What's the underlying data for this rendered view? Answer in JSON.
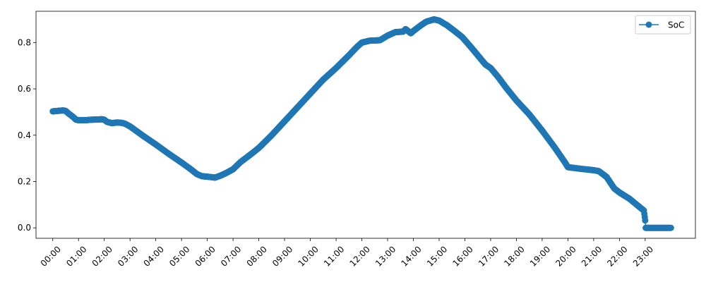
{
  "chart_data": {
    "type": "line",
    "x_ticks": [
      "00:00",
      "01:00",
      "02:00",
      "03:00",
      "04:00",
      "05:00",
      "06:00",
      "07:00",
      "08:00",
      "09:00",
      "10:00",
      "11:00",
      "12:00",
      "13:00",
      "14:00",
      "15:00",
      "16:00",
      "17:00",
      "18:00",
      "19:00",
      "20:00",
      "21:00",
      "22:00",
      "23:00"
    ],
    "y_ticks": [
      "0.0",
      "0.2",
      "0.4",
      "0.6",
      "0.8"
    ],
    "xlim_hours": [
      -0.65,
      24.95
    ],
    "ylim": [
      -0.045,
      0.935
    ],
    "legend": {
      "entries": [
        "SoC"
      ],
      "placement": "top-right"
    },
    "grid": false,
    "colors": {
      "series": "#1f77b4"
    },
    "series": [
      {
        "name": "SoC",
        "points": [
          [
            0.0,
            0.503
          ],
          [
            0.2,
            0.505
          ],
          [
            0.4,
            0.507
          ],
          [
            0.5,
            0.505
          ],
          [
            0.6,
            0.495
          ],
          [
            0.8,
            0.478
          ],
          [
            0.9,
            0.467
          ],
          [
            1.0,
            0.465
          ],
          [
            1.3,
            0.465
          ],
          [
            1.5,
            0.467
          ],
          [
            1.8,
            0.468
          ],
          [
            1.9,
            0.469
          ],
          [
            2.0,
            0.467
          ],
          [
            2.1,
            0.458
          ],
          [
            2.3,
            0.452
          ],
          [
            2.5,
            0.455
          ],
          [
            2.7,
            0.453
          ],
          [
            2.8,
            0.45
          ],
          [
            3.0,
            0.438
          ],
          [
            3.5,
            0.398
          ],
          [
            4.0,
            0.36
          ],
          [
            4.5,
            0.32
          ],
          [
            5.0,
            0.282
          ],
          [
            5.3,
            0.258
          ],
          [
            5.6,
            0.232
          ],
          [
            5.8,
            0.223
          ],
          [
            6.0,
            0.221
          ],
          [
            6.3,
            0.217
          ],
          [
            6.5,
            0.225
          ],
          [
            6.7,
            0.235
          ],
          [
            7.0,
            0.253
          ],
          [
            7.3,
            0.285
          ],
          [
            7.6,
            0.31
          ],
          [
            8.0,
            0.345
          ],
          [
            8.5,
            0.4
          ],
          [
            9.0,
            0.46
          ],
          [
            9.5,
            0.52
          ],
          [
            10.0,
            0.58
          ],
          [
            10.5,
            0.64
          ],
          [
            11.0,
            0.69
          ],
          [
            11.5,
            0.745
          ],
          [
            11.8,
            0.78
          ],
          [
            12.0,
            0.8
          ],
          [
            12.3,
            0.808
          ],
          [
            12.7,
            0.81
          ],
          [
            13.0,
            0.83
          ],
          [
            13.3,
            0.845
          ],
          [
            13.6,
            0.847
          ],
          [
            13.7,
            0.858
          ],
          [
            13.9,
            0.84
          ],
          [
            14.0,
            0.85
          ],
          [
            14.3,
            0.875
          ],
          [
            14.5,
            0.89
          ],
          [
            14.8,
            0.9
          ],
          [
            15.0,
            0.895
          ],
          [
            15.3,
            0.875
          ],
          [
            15.6,
            0.85
          ],
          [
            15.9,
            0.823
          ],
          [
            16.2,
            0.785
          ],
          [
            16.5,
            0.745
          ],
          [
            16.8,
            0.705
          ],
          [
            17.0,
            0.69
          ],
          [
            17.3,
            0.65
          ],
          [
            17.6,
            0.605
          ],
          [
            18.0,
            0.55
          ],
          [
            18.5,
            0.49
          ],
          [
            19.0,
            0.42
          ],
          [
            19.5,
            0.345
          ],
          [
            19.9,
            0.28
          ],
          [
            20.0,
            0.262
          ],
          [
            20.5,
            0.255
          ],
          [
            21.0,
            0.249
          ],
          [
            21.2,
            0.245
          ],
          [
            21.5,
            0.22
          ],
          [
            21.8,
            0.17
          ],
          [
            22.0,
            0.153
          ],
          [
            22.4,
            0.125
          ],
          [
            22.8,
            0.088
          ],
          [
            22.95,
            0.075
          ],
          [
            23.0,
            0.032
          ],
          [
            23.02,
            0.0
          ],
          [
            23.5,
            0.0
          ],
          [
            24.0,
            0.0
          ]
        ]
      }
    ]
  }
}
